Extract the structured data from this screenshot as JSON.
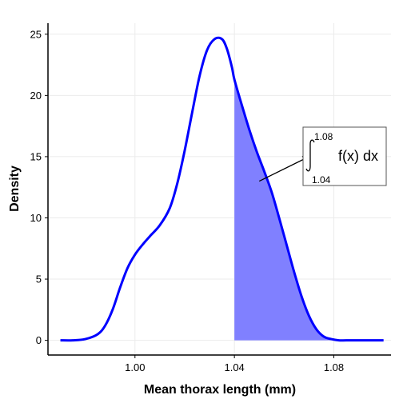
{
  "chart_data": {
    "type": "line",
    "title": "",
    "xlabel": "Mean thorax length (mm)",
    "ylabel": "Density",
    "xlim": [
      0.965,
      1.103
    ],
    "ylim": [
      -1.2,
      25.9
    ],
    "xticks": [
      1.0,
      1.04,
      1.08
    ],
    "xtick_labels": [
      "1.00",
      "1.04",
      "1.08"
    ],
    "yticks": [
      0,
      5,
      10,
      15,
      20,
      25
    ],
    "ytick_labels": [
      "0",
      "5",
      "10",
      "15",
      "20",
      "25"
    ],
    "grid": true,
    "legend": "none",
    "series": [
      {
        "color": "#0000ff",
        "x": [
          0.97,
          0.975,
          0.98,
          0.985,
          0.988,
          0.991,
          0.994,
          0.997,
          1.0,
          1.003,
          1.006,
          1.01,
          1.014,
          1.017,
          1.02,
          1.023,
          1.026,
          1.029,
          1.032,
          1.035,
          1.037,
          1.039,
          1.04,
          1.043,
          1.046,
          1.049,
          1.052,
          1.055,
          1.058,
          1.061,
          1.064,
          1.067,
          1.07,
          1.073,
          1.076,
          1.079,
          1.082,
          1.085,
          1.09,
          1.1
        ],
        "y": [
          0.0,
          0.0,
          0.1,
          0.5,
          1.2,
          2.5,
          4.3,
          5.9,
          7.0,
          7.8,
          8.5,
          9.4,
          10.8,
          12.8,
          15.5,
          18.6,
          21.6,
          23.7,
          24.6,
          24.6,
          23.8,
          22.3,
          21.3,
          19.2,
          17.2,
          15.4,
          13.8,
          12.1,
          10.0,
          7.8,
          5.6,
          3.6,
          2.0,
          0.9,
          0.3,
          0.1,
          0.0,
          0.0,
          0.0,
          0.0
        ]
      }
    ],
    "shaded_region": {
      "from": 1.04,
      "to": 1.08,
      "color": "#8080ff"
    },
    "annotation": {
      "lower": "1.04",
      "upper": "1.08",
      "integrand": "f(x) dx",
      "arrow_from": [
        1.05,
        13.0
      ],
      "arrow_to": [
        1.071,
        15.1
      ]
    }
  }
}
